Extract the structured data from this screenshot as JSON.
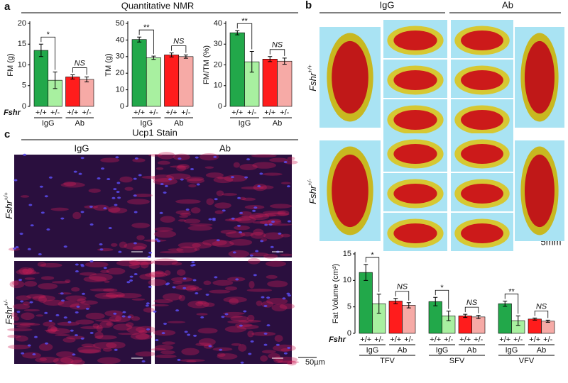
{
  "figure": {
    "panel_labels": [
      "a",
      "b",
      "c"
    ],
    "nmr_title": "Quantitative NMR",
    "stain_title": "Ucp1 Stain",
    "columns": [
      "IgG",
      "Ab"
    ],
    "rows": [
      {
        "gene": "Fshr",
        "genotype": "+/+"
      },
      {
        "gene": "Fshr",
        "genotype": "+/-"
      }
    ],
    "scale_bars": [
      "5mm",
      "50µm"
    ]
  },
  "chart_data": [
    {
      "type": "bar",
      "ylabel": "FM (g)",
      "gene_label": "Fshr",
      "categories": [
        "IgG",
        "Ab"
      ],
      "series": [
        {
          "name": "+/+",
          "colors": [
            "#22a84a",
            "#ff1c1c"
          ],
          "values": [
            13.5,
            7.1
          ],
          "errors": [
            1.5,
            0.5
          ]
        },
        {
          "name": "+/-",
          "colors": [
            "#a8f0a0",
            "#f6aaa6"
          ],
          "values": [
            6.3,
            6.5
          ],
          "errors": [
            2,
            0.6
          ]
        }
      ],
      "annotations": [
        "*",
        "NS"
      ],
      "ylim": [
        0,
        20
      ],
      "yticks": [
        0,
        5,
        10,
        15,
        20
      ]
    },
    {
      "type": "bar",
      "ylabel": "TM (g)",
      "categories": [
        "IgG",
        "Ab"
      ],
      "series": [
        {
          "name": "+/+",
          "colors": [
            "#22a84a",
            "#ff1c1c"
          ],
          "values": [
            40.3,
            31
          ],
          "errors": [
            1.5,
            1.2
          ]
        },
        {
          "name": "+/-",
          "colors": [
            "#a8f0a0",
            "#f6aaa6"
          ],
          "values": [
            29.3,
            30
          ],
          "errors": [
            1,
            1
          ]
        }
      ],
      "annotations": [
        "**",
        "NS"
      ],
      "ylim": [
        0,
        50
      ],
      "yticks": [
        0,
        10,
        20,
        30,
        40,
        50
      ]
    },
    {
      "type": "bar",
      "ylabel": "FM/TM (%)",
      "categories": [
        "IgG",
        "Ab"
      ],
      "series": [
        {
          "name": "+/+",
          "colors": [
            "#22a84a",
            "#ff1c1c"
          ],
          "values": [
            35.5,
            22.8
          ],
          "errors": [
            1,
            1.2
          ]
        },
        {
          "name": "+/-",
          "colors": [
            "#a8f0a0",
            "#f6aaa6"
          ],
          "values": [
            21.5,
            21.8
          ],
          "errors": [
            5,
            1.5
          ]
        }
      ],
      "annotations": [
        "**",
        "NS"
      ],
      "ylim": [
        0,
        40
      ],
      "yticks": [
        0,
        10,
        20,
        30,
        40
      ]
    },
    {
      "type": "bar",
      "ylabel": "Fat Volume (cm³)",
      "gene_label": "Fshr",
      "categories": [
        "IgG",
        "Ab",
        "IgG",
        "Ab",
        "IgG",
        "Ab"
      ],
      "group_labels": [
        "TFV",
        "SFV",
        "VFV"
      ],
      "series": [
        {
          "name": "+/+",
          "colors": [
            "#22a84a",
            "#ff1c1c",
            "#22a84a",
            "#ff1c1c",
            "#22a84a",
            "#ff1c1c"
          ],
          "values": [
            11.5,
            6.1,
            6.0,
            3.3,
            5.6,
            2.7
          ],
          "errors": [
            1.5,
            0.5,
            0.8,
            0.3,
            0.5,
            0.2
          ]
        },
        {
          "name": "+/-",
          "colors": [
            "#a8f0a0",
            "#f6aaa6",
            "#a8f0a0",
            "#f6aaa6",
            "#a8f0a0",
            "#f6aaa6"
          ],
          "values": [
            5.6,
            5.3,
            3.3,
            3.1,
            2.4,
            2.3
          ],
          "errors": [
            1.8,
            0.5,
            0.9,
            0.3,
            0.9,
            0.2
          ]
        }
      ],
      "annotations": [
        "*",
        "NS",
        "*",
        "NS",
        "**",
        "NS"
      ],
      "ylim": [
        0,
        15
      ],
      "yticks": [
        0,
        5,
        10,
        15
      ]
    }
  ]
}
